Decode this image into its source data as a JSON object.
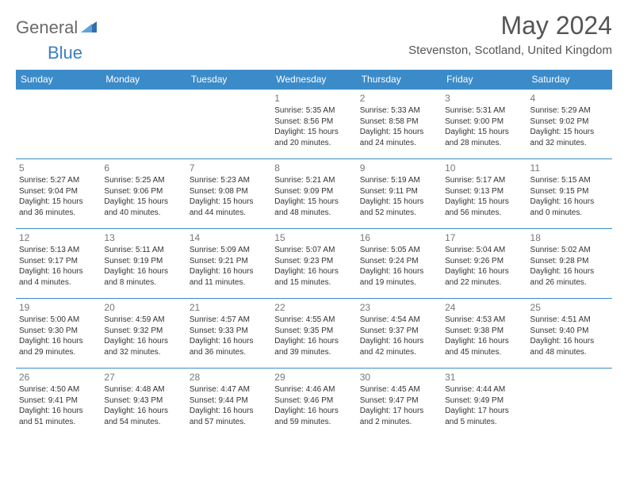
{
  "logo": {
    "first": "General",
    "second": "Blue"
  },
  "title": "May 2024",
  "location": "Stevenston, Scotland, United Kingdom",
  "days": [
    "Sunday",
    "Monday",
    "Tuesday",
    "Wednesday",
    "Thursday",
    "Friday",
    "Saturday"
  ],
  "colors": {
    "header_bg": "#3b8bc9",
    "header_text": "#ffffff",
    "border": "#3b8bc9",
    "daynum": "#777777",
    "body_text": "#333333",
    "logo_gray": "#6a6a6a",
    "logo_blue": "#3b7fc4",
    "title_color": "#555555"
  },
  "weeks": [
    [
      {
        "n": "",
        "sr": "",
        "ss": "",
        "dl": ""
      },
      {
        "n": "",
        "sr": "",
        "ss": "",
        "dl": ""
      },
      {
        "n": "",
        "sr": "",
        "ss": "",
        "dl": ""
      },
      {
        "n": "1",
        "sr": "5:35 AM",
        "ss": "8:56 PM",
        "dl": "15 hours and 20 minutes."
      },
      {
        "n": "2",
        "sr": "5:33 AM",
        "ss": "8:58 PM",
        "dl": "15 hours and 24 minutes."
      },
      {
        "n": "3",
        "sr": "5:31 AM",
        "ss": "9:00 PM",
        "dl": "15 hours and 28 minutes."
      },
      {
        "n": "4",
        "sr": "5:29 AM",
        "ss": "9:02 PM",
        "dl": "15 hours and 32 minutes."
      }
    ],
    [
      {
        "n": "5",
        "sr": "5:27 AM",
        "ss": "9:04 PM",
        "dl": "15 hours and 36 minutes."
      },
      {
        "n": "6",
        "sr": "5:25 AM",
        "ss": "9:06 PM",
        "dl": "15 hours and 40 minutes."
      },
      {
        "n": "7",
        "sr": "5:23 AM",
        "ss": "9:08 PM",
        "dl": "15 hours and 44 minutes."
      },
      {
        "n": "8",
        "sr": "5:21 AM",
        "ss": "9:09 PM",
        "dl": "15 hours and 48 minutes."
      },
      {
        "n": "9",
        "sr": "5:19 AM",
        "ss": "9:11 PM",
        "dl": "15 hours and 52 minutes."
      },
      {
        "n": "10",
        "sr": "5:17 AM",
        "ss": "9:13 PM",
        "dl": "15 hours and 56 minutes."
      },
      {
        "n": "11",
        "sr": "5:15 AM",
        "ss": "9:15 PM",
        "dl": "16 hours and 0 minutes."
      }
    ],
    [
      {
        "n": "12",
        "sr": "5:13 AM",
        "ss": "9:17 PM",
        "dl": "16 hours and 4 minutes."
      },
      {
        "n": "13",
        "sr": "5:11 AM",
        "ss": "9:19 PM",
        "dl": "16 hours and 8 minutes."
      },
      {
        "n": "14",
        "sr": "5:09 AM",
        "ss": "9:21 PM",
        "dl": "16 hours and 11 minutes."
      },
      {
        "n": "15",
        "sr": "5:07 AM",
        "ss": "9:23 PM",
        "dl": "16 hours and 15 minutes."
      },
      {
        "n": "16",
        "sr": "5:05 AM",
        "ss": "9:24 PM",
        "dl": "16 hours and 19 minutes."
      },
      {
        "n": "17",
        "sr": "5:04 AM",
        "ss": "9:26 PM",
        "dl": "16 hours and 22 minutes."
      },
      {
        "n": "18",
        "sr": "5:02 AM",
        "ss": "9:28 PM",
        "dl": "16 hours and 26 minutes."
      }
    ],
    [
      {
        "n": "19",
        "sr": "5:00 AM",
        "ss": "9:30 PM",
        "dl": "16 hours and 29 minutes."
      },
      {
        "n": "20",
        "sr": "4:59 AM",
        "ss": "9:32 PM",
        "dl": "16 hours and 32 minutes."
      },
      {
        "n": "21",
        "sr": "4:57 AM",
        "ss": "9:33 PM",
        "dl": "16 hours and 36 minutes."
      },
      {
        "n": "22",
        "sr": "4:55 AM",
        "ss": "9:35 PM",
        "dl": "16 hours and 39 minutes."
      },
      {
        "n": "23",
        "sr": "4:54 AM",
        "ss": "9:37 PM",
        "dl": "16 hours and 42 minutes."
      },
      {
        "n": "24",
        "sr": "4:53 AM",
        "ss": "9:38 PM",
        "dl": "16 hours and 45 minutes."
      },
      {
        "n": "25",
        "sr": "4:51 AM",
        "ss": "9:40 PM",
        "dl": "16 hours and 48 minutes."
      }
    ],
    [
      {
        "n": "26",
        "sr": "4:50 AM",
        "ss": "9:41 PM",
        "dl": "16 hours and 51 minutes."
      },
      {
        "n": "27",
        "sr": "4:48 AM",
        "ss": "9:43 PM",
        "dl": "16 hours and 54 minutes."
      },
      {
        "n": "28",
        "sr": "4:47 AM",
        "ss": "9:44 PM",
        "dl": "16 hours and 57 minutes."
      },
      {
        "n": "29",
        "sr": "4:46 AM",
        "ss": "9:46 PM",
        "dl": "16 hours and 59 minutes."
      },
      {
        "n": "30",
        "sr": "4:45 AM",
        "ss": "9:47 PM",
        "dl": "17 hours and 2 minutes."
      },
      {
        "n": "31",
        "sr": "4:44 AM",
        "ss": "9:49 PM",
        "dl": "17 hours and 5 minutes."
      },
      {
        "n": "",
        "sr": "",
        "ss": "",
        "dl": ""
      }
    ]
  ],
  "labels": {
    "sunrise": "Sunrise: ",
    "sunset": "Sunset: ",
    "daylight": "Daylight: "
  }
}
